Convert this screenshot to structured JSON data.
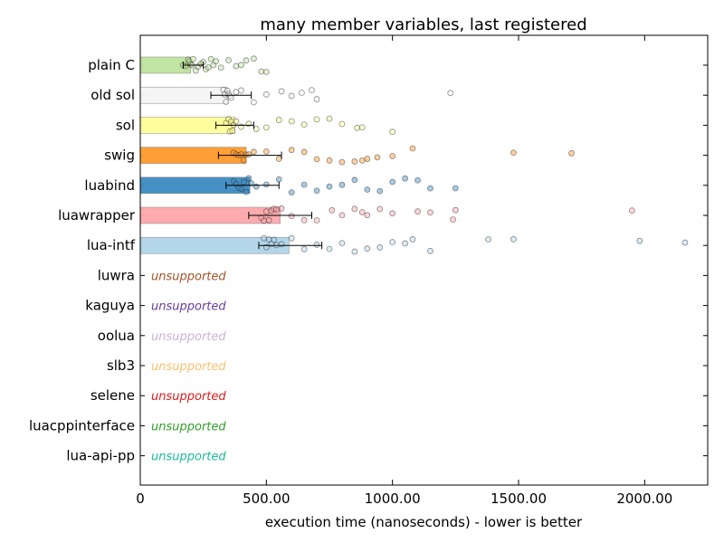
{
  "chart_data": {
    "type": "bar",
    "orientation": "horizontal",
    "title": "many member variables, last registered",
    "xlabel": "execution time (nanoseconds) - lower is better",
    "ylabel": "",
    "xlim": [
      0,
      2250
    ],
    "xticks": [
      0,
      500,
      1000,
      1500,
      2000
    ],
    "xtick_labels": [
      "0",
      "500.00",
      "1000.00",
      "1500.00",
      "2000.00"
    ],
    "grid": false,
    "categories": [
      "plain C",
      "old sol",
      "sol",
      "swig",
      "luabind",
      "luawrapper",
      "lua-intf",
      "luwra",
      "kaguya",
      "oolua",
      "slb3",
      "selene",
      "luacppinterface",
      "lua-api-pp"
    ],
    "values": [
      200,
      345,
      375,
      420,
      435,
      555,
      590,
      null,
      null,
      null,
      null,
      null,
      null,
      null
    ],
    "errors": [
      [
        170,
        250
      ],
      [
        280,
        440
      ],
      [
        300,
        450
      ],
      [
        310,
        560
      ],
      [
        340,
        550
      ],
      [
        430,
        680
      ],
      [
        470,
        720
      ],
      null,
      null,
      null,
      null,
      null,
      null,
      null
    ],
    "supported": [
      true,
      true,
      true,
      true,
      true,
      true,
      true,
      false,
      false,
      false,
      false,
      false,
      false,
      false
    ],
    "unsupported_label": "unsupported",
    "colors": [
      "#bde39c",
      "#f4f4f4",
      "#ffff99",
      "#ff9a2c",
      "#3b8bc2",
      "#fca6aa",
      "#afd4e8",
      "#a6522a",
      "#6b3d9a",
      "#cab2d6",
      "#fdbf6f",
      "#e31a1c",
      "#33a02c",
      "#1ebc9c"
    ],
    "samples": [
      [
        170,
        180,
        190,
        195,
        200,
        205,
        210,
        220,
        230,
        240,
        250,
        260,
        270,
        280,
        290,
        300,
        320,
        350,
        380,
        400,
        420,
        450,
        480,
        500
      ],
      [
        330,
        335,
        340,
        345,
        350,
        355,
        360,
        380,
        400,
        450,
        500,
        560,
        600,
        640,
        680,
        700,
        1230
      ],
      [
        340,
        350,
        355,
        360,
        365,
        370,
        380,
        400,
        430,
        460,
        500,
        550,
        600,
        650,
        700,
        750,
        800,
        860,
        880,
        1000
      ],
      [
        370,
        380,
        390,
        400,
        410,
        420,
        430,
        450,
        500,
        550,
        600,
        650,
        700,
        750,
        800,
        850,
        880,
        900,
        940,
        1000,
        1080,
        1480,
        1710
      ],
      [
        370,
        380,
        390,
        400,
        410,
        420,
        430,
        440,
        460,
        500,
        550,
        600,
        650,
        700,
        750,
        800,
        850,
        900,
        950,
        1000,
        1050,
        1100,
        1150,
        1250
      ],
      [
        480,
        490,
        500,
        510,
        520,
        530,
        540,
        560,
        600,
        650,
        700,
        760,
        800,
        850,
        880,
        900,
        950,
        1000,
        1100,
        1150,
        1240,
        1250,
        1950
      ],
      [
        490,
        500,
        510,
        520,
        530,
        540,
        560,
        600,
        650,
        700,
        750,
        800,
        850,
        900,
        950,
        1000,
        1050,
        1080,
        1150,
        1380,
        1480,
        1980,
        2160
      ],
      [],
      [],
      [],
      [],
      [],
      [],
      []
    ]
  }
}
